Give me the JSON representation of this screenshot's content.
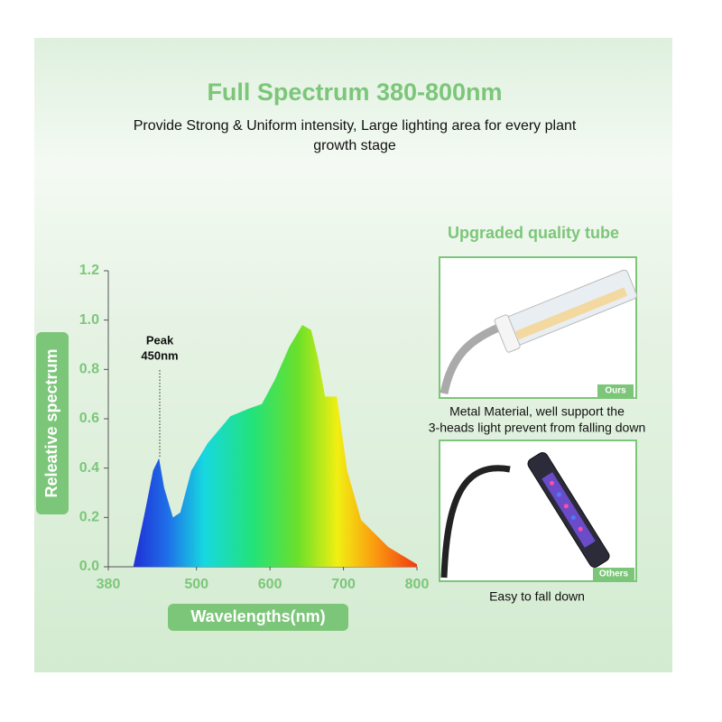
{
  "header": {
    "title": "Full Spectrum 380-800nm",
    "subtitle_lines": [
      "Provide Strong & Uniform intensity, Large lighting area for every plant",
      "growth stage"
    ]
  },
  "chart_data": {
    "type": "area",
    "x": [
      414,
      429,
      441,
      449,
      456,
      468,
      478,
      493,
      515,
      546,
      570,
      589,
      607,
      626,
      644,
      656,
      665,
      675,
      691,
      705,
      724,
      761,
      800
    ],
    "values": [
      0,
      0.21,
      0.39,
      0.44,
      0.32,
      0.2,
      0.22,
      0.39,
      0.5,
      0.61,
      0.64,
      0.66,
      0.76,
      0.89,
      0.98,
      0.96,
      0.85,
      0.69,
      0.69,
      0.39,
      0.19,
      0.08,
      0.01
    ],
    "xlim": [
      380,
      800
    ],
    "xticks": [
      380,
      500,
      600,
      700,
      800
    ],
    "ylim": [
      0,
      1.2
    ],
    "yticks": [
      {
        "value": 0,
        "label": "0.0"
      },
      0.2,
      0.4,
      0.6,
      0.8,
      {
        "value": 1,
        "label": "1.0"
      },
      1.2
    ],
    "xlabel": "Wavelengths(nm)",
    "ylabel": "Releative spectrum",
    "annotation": {
      "lines": [
        "Peak",
        "450nm"
      ],
      "x": 450
    }
  },
  "panels": {
    "title": "Upgraded quality tube",
    "items": [
      {
        "tag": "Ours",
        "caption_lines": [
          "Metal Material, well support the",
          "3-heads light prevent from falling down"
        ]
      },
      {
        "tag": "Others",
        "caption_lines": [
          "Easy to fall down"
        ]
      }
    ]
  }
}
